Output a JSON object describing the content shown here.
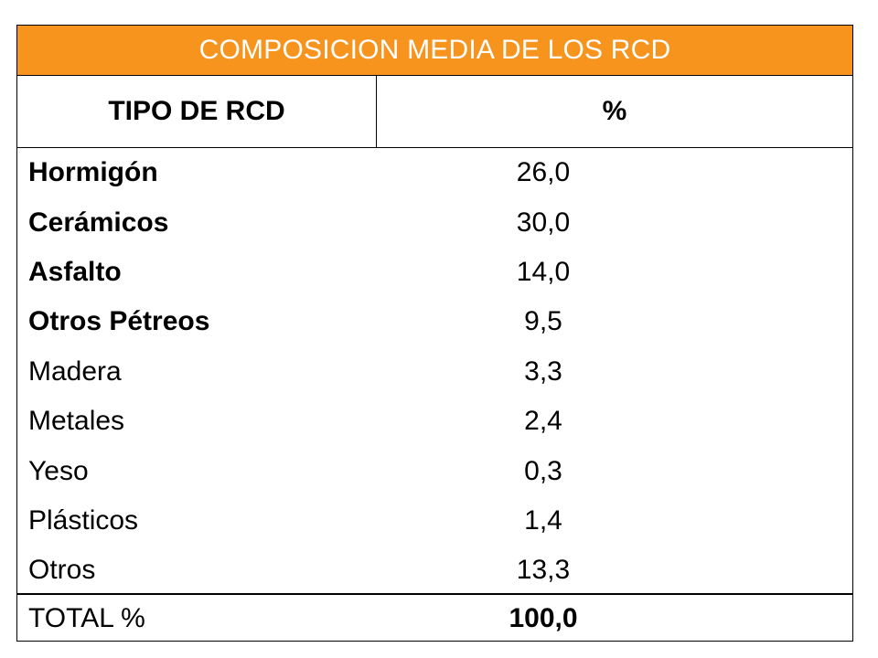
{
  "colors": {
    "title_background": "#F7941D",
    "title_text": "#FFFFFF",
    "border": "#000000"
  },
  "chart_data": {
    "type": "table",
    "title": "COMPOSICION MEDIA DE LOS RCD",
    "columns": [
      "TIPO DE RCD",
      "%"
    ],
    "rows": [
      {
        "label": "Hormigón",
        "value": "26,0",
        "bold": true
      },
      {
        "label": "Cerámicos",
        "value": "30,0",
        "bold": true
      },
      {
        "label": "Asfalto",
        "value": "14,0",
        "bold": true
      },
      {
        "label": "Otros Pétreos",
        "value": "9,5",
        "bold": true
      },
      {
        "label": "Madera",
        "value": "3,3",
        "bold": false
      },
      {
        "label": "Metales",
        "value": "2,4",
        "bold": false
      },
      {
        "label": "Yeso",
        "value": "0,3",
        "bold": false
      },
      {
        "label": "Plásticos",
        "value": "1,4",
        "bold": false
      },
      {
        "label": "Otros",
        "value": "13,3",
        "bold": false
      }
    ],
    "total": {
      "label": "TOTAL %",
      "value": "100,0"
    }
  }
}
